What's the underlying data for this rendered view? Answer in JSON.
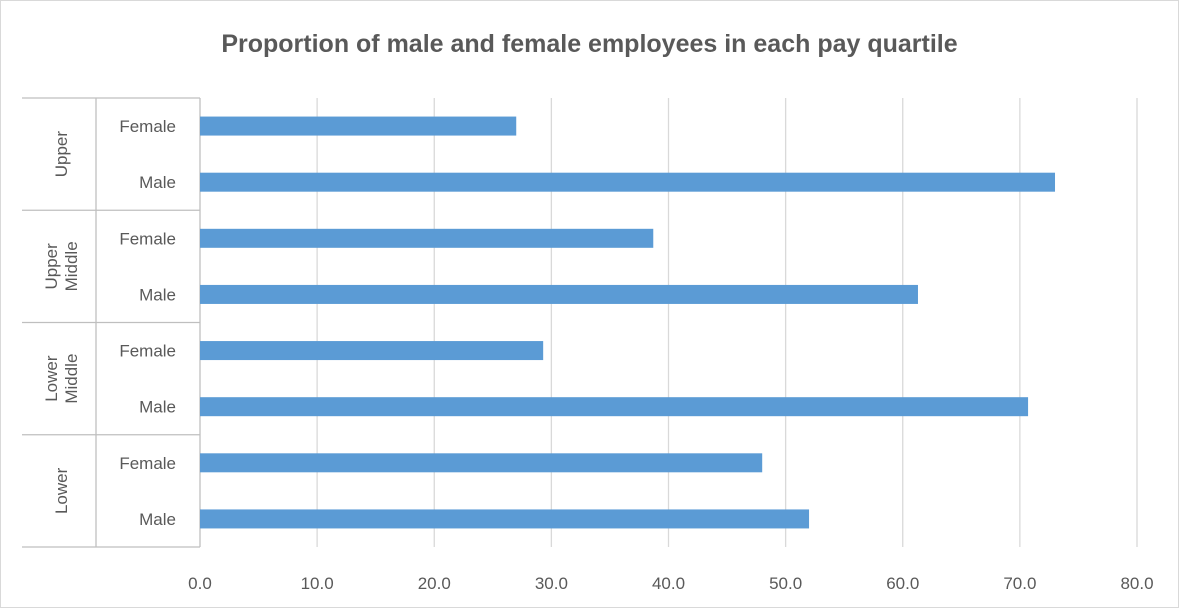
{
  "chart_data": {
    "type": "bar",
    "orientation": "horizontal",
    "title": "Proportion of male and female employees in each pay quartile",
    "xlabel": "",
    "ylabel": "",
    "xlim": [
      0,
      80
    ],
    "x_ticks": [
      "0.0",
      "10.0",
      "20.0",
      "30.0",
      "40.0",
      "50.0",
      "60.0",
      "70.0",
      "80.0"
    ],
    "grid": "vertical",
    "legend": "none",
    "bar_color": "#5b9bd5",
    "groups": [
      {
        "name": "Upper",
        "label_lines": [
          "Upper"
        ],
        "bars": [
          {
            "category": "Female",
            "value": 27.0
          },
          {
            "category": "Male",
            "value": 73.0
          }
        ]
      },
      {
        "name": "Upper Middle",
        "label_lines": [
          "Upper",
          "Middle"
        ],
        "bars": [
          {
            "category": "Female",
            "value": 38.7
          },
          {
            "category": "Male",
            "value": 61.3
          }
        ]
      },
      {
        "name": "Lower Middle",
        "label_lines": [
          "Lower",
          "Middle"
        ],
        "bars": [
          {
            "category": "Female",
            "value": 29.3
          },
          {
            "category": "Male",
            "value": 70.7
          }
        ]
      },
      {
        "name": "Lower",
        "label_lines": [
          "Lower"
        ],
        "bars": [
          {
            "category": "Female",
            "value": 48.0
          },
          {
            "category": "Male",
            "value": 52.0
          }
        ]
      }
    ]
  }
}
